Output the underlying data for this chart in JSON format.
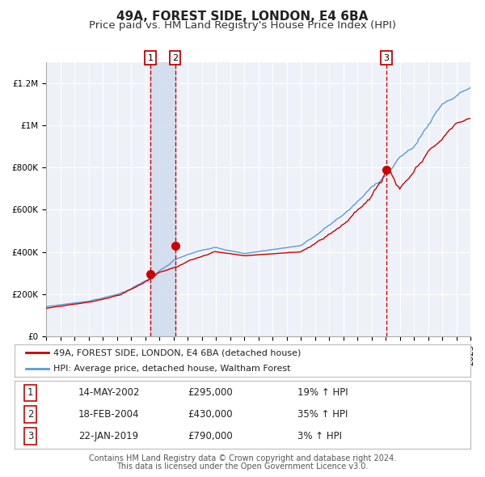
{
  "title": "49A, FOREST SIDE, LONDON, E4 6BA",
  "subtitle": "Price paid vs. HM Land Registry's House Price Index (HPI)",
  "ylim": [
    0,
    1300000
  ],
  "yticks": [
    0,
    200000,
    400000,
    600000,
    800000,
    1000000,
    1200000
  ],
  "ytick_labels": [
    "£0",
    "£200K",
    "£400K",
    "£600K",
    "£800K",
    "£1M",
    "£1.2M"
  ],
  "x_start_year": 1995,
  "x_end_year": 2025,
  "red_line_color": "#cc0000",
  "blue_line_color": "#5b9bd5",
  "background_color": "#ffffff",
  "plot_bg_color": "#eef2f8",
  "grid_color": "#ffffff",
  "shade_color": "#cfdcee",
  "transaction1_date": 2002.37,
  "transaction2_date": 2004.12,
  "transaction3_date": 2019.06,
  "transaction1_price": 295000,
  "transaction2_price": 430000,
  "transaction3_price": 790000,
  "legend_red_label": "49A, FOREST SIDE, LONDON, E4 6BA (detached house)",
  "legend_blue_label": "HPI: Average price, detached house, Waltham Forest",
  "table_rows": [
    [
      "1",
      "14-MAY-2002",
      "£295,000",
      "19% ↑ HPI"
    ],
    [
      "2",
      "18-FEB-2004",
      "£430,000",
      "35% ↑ HPI"
    ],
    [
      "3",
      "22-JAN-2019",
      "£790,000",
      "3% ↑ HPI"
    ]
  ],
  "footer_line1": "Contains HM Land Registry data © Crown copyright and database right 2024.",
  "footer_line2": "This data is licensed under the Open Government Licence v3.0.",
  "title_fontsize": 11,
  "subtitle_fontsize": 9.5,
  "tick_fontsize": 7.5,
  "legend_fontsize": 8,
  "table_fontsize": 8.5,
  "footer_fontsize": 7
}
